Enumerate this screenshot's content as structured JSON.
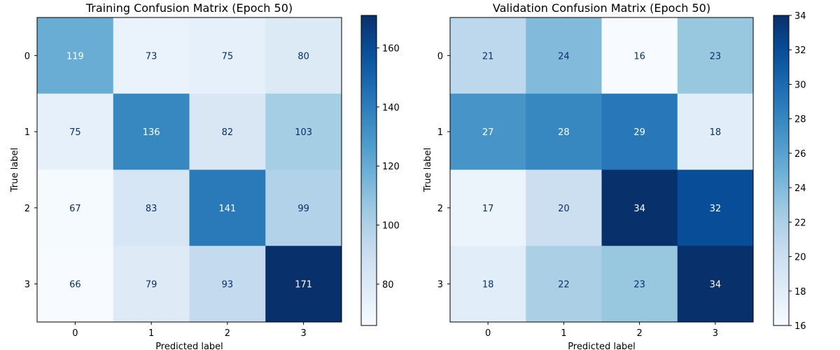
{
  "chart_data": [
    {
      "type": "heatmap",
      "title": "Training Confusion Matrix (Epoch 50)",
      "xlabel": "Predicted label",
      "ylabel": "True label",
      "x_categories": [
        "0",
        "1",
        "2",
        "3"
      ],
      "y_categories": [
        "0",
        "1",
        "2",
        "3"
      ],
      "matrix": [
        [
          119,
          73,
          75,
          80
        ],
        [
          75,
          136,
          82,
          103
        ],
        [
          67,
          83,
          141,
          99
        ],
        [
          66,
          79,
          93,
          171
        ]
      ],
      "colormap": "Blues",
      "vmin": 66,
      "vmax": 171,
      "colorbar_ticks": [
        80,
        100,
        120,
        140,
        160
      ]
    },
    {
      "type": "heatmap",
      "title": "Validation Confusion Matrix (Epoch 50)",
      "xlabel": "Predicted label",
      "ylabel": "True label",
      "x_categories": [
        "0",
        "1",
        "2",
        "3"
      ],
      "y_categories": [
        "0",
        "1",
        "2",
        "3"
      ],
      "matrix": [
        [
          21,
          24,
          16,
          23
        ],
        [
          27,
          28,
          29,
          18
        ],
        [
          17,
          20,
          34,
          32
        ],
        [
          18,
          22,
          23,
          34
        ]
      ],
      "colormap": "Blues",
      "vmin": 16,
      "vmax": 34,
      "colorbar_ticks": [
        16,
        18,
        20,
        22,
        24,
        26,
        28,
        30,
        32,
        34
      ]
    }
  ]
}
